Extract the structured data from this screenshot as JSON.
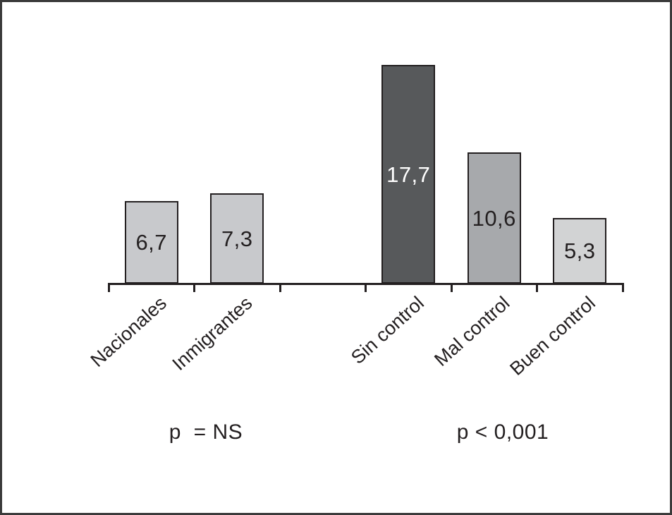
{
  "chart_data": {
    "type": "bar",
    "title": "",
    "xlabel": "",
    "ylabel": "",
    "grid": false,
    "legend": false,
    "ylim": [
      0,
      20
    ],
    "categories": [
      "Nacionales",
      "Inmigrantes",
      "Sin control",
      "Mal control",
      "Buen control"
    ],
    "values": [
      6.7,
      7.3,
      17.7,
      10.6,
      5.3
    ],
    "value_labels": [
      "6,7",
      "7,3",
      "17,7",
      "10,6",
      "5,3"
    ],
    "bar_fill_colors": [
      "#c8c9cc",
      "#c8c9cc",
      "#57595b",
      "#a7a9ac",
      "#d2d3d4"
    ],
    "value_label_colors": [
      "#231f20",
      "#231f20",
      "#ffffff",
      "#231f20",
      "#231f20"
    ],
    "bar_border_color": "#231f20",
    "axis_color": "#231f20",
    "num_slots": 6,
    "slot_indices": [
      0,
      1,
      3,
      4,
      5
    ],
    "annotations": [
      {
        "text": "p  = NS",
        "applies_to": [
          "Nacionales",
          "Inmigrantes"
        ]
      },
      {
        "text": "p < 0,001",
        "applies_to": [
          "Sin control",
          "Mal control",
          "Buen control"
        ]
      }
    ]
  }
}
